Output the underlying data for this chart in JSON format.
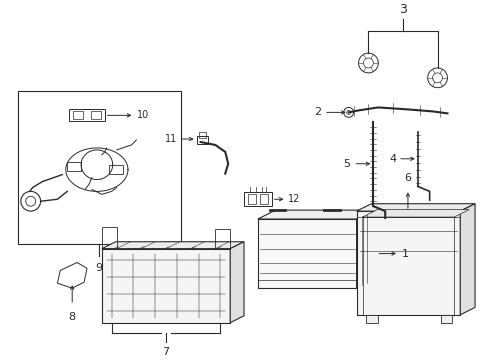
{
  "background_color": "#ffffff",
  "line_color": "#2a2a2a",
  "fig_width": 4.9,
  "fig_height": 3.6,
  "dpi": 100,
  "parts": {
    "1_label": "1",
    "2_label": "2",
    "3_label": "3",
    "4_label": "4",
    "5_label": "5",
    "6_label": "6",
    "7_label": "7",
    "8_label": "8",
    "9_label": "9",
    "10_label": "10",
    "11_label": "11",
    "12_label": "12"
  }
}
